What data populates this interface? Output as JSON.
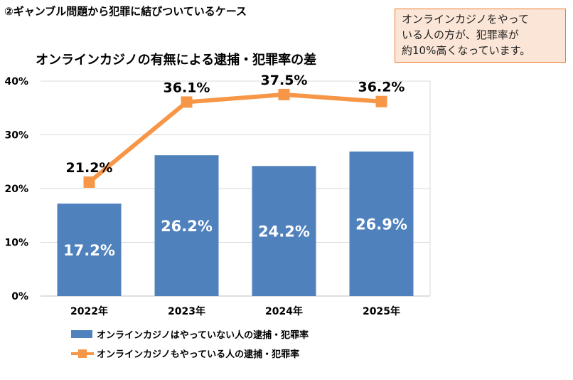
{
  "slide_title": "②ギャンブル問題から犯罪に結びついているケース",
  "callout": {
    "lines": [
      "オンラインカジノをやって",
      "いる人の方が、犯罪率が",
      "約10%高くなっています。"
    ],
    "bg_color": "#fbe5d6",
    "border_color": "#ed7d31"
  },
  "chart_data": {
    "type": "bar",
    "title": "オンラインカジノの有無による逮捕・犯罪率の差",
    "categories": [
      "2022年",
      "2023年",
      "2024年",
      "2025年"
    ],
    "ylim": [
      0,
      40
    ],
    "yticks": [
      "0%",
      "10%",
      "20%",
      "30%",
      "40%"
    ],
    "grid": true,
    "legend_position": "bottom",
    "series": [
      {
        "name": "オンラインカジノはやっていない人の逮捕・犯罪率",
        "type": "bar",
        "values": [
          17.2,
          26.2,
          24.2,
          26.9
        ],
        "labels": [
          "17.2%",
          "26.2%",
          "24.2%",
          "26.9%"
        ],
        "color": "#4f81bd"
      },
      {
        "name": "オンラインカジノもやっている人の逮捕・犯罪率",
        "type": "line",
        "values": [
          21.2,
          36.1,
          37.5,
          36.2
        ],
        "labels": [
          "21.2%",
          "36.1%",
          "37.5%",
          "36.2%"
        ],
        "color": "#f79646"
      }
    ]
  }
}
